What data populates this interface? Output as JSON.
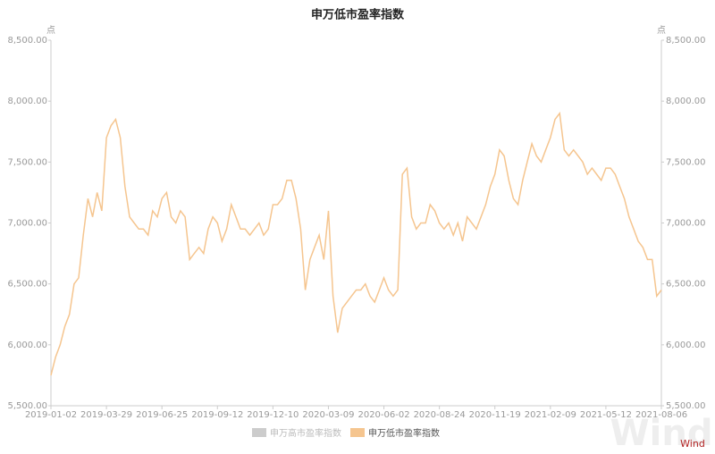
{
  "chart_data": {
    "type": "line",
    "title": "申万低市盈率指数",
    "unit_left": "点",
    "unit_right": "点",
    "watermark": "Wind",
    "categories": [
      "2019-01-02",
      null,
      null,
      null,
      null,
      null,
      null,
      null,
      null,
      null,
      null,
      null,
      "2019-03-29",
      null,
      null,
      null,
      null,
      null,
      null,
      null,
      null,
      null,
      null,
      null,
      "2019-06-25",
      null,
      null,
      null,
      null,
      null,
      null,
      null,
      null,
      null,
      null,
      null,
      "2019-09-12",
      null,
      null,
      null,
      null,
      null,
      null,
      null,
      null,
      null,
      null,
      null,
      "2019-12-10",
      null,
      null,
      null,
      null,
      null,
      null,
      null,
      null,
      null,
      null,
      null,
      "2020-03-09",
      null,
      null,
      null,
      null,
      null,
      null,
      null,
      null,
      null,
      null,
      null,
      "2020-06-02",
      null,
      null,
      null,
      null,
      null,
      null,
      null,
      null,
      null,
      null,
      null,
      "2020-08-24",
      null,
      null,
      null,
      null,
      null,
      null,
      null,
      null,
      null,
      null,
      null,
      "2020-11-19",
      null,
      null,
      null,
      null,
      null,
      null,
      null,
      null,
      null,
      null,
      null,
      "2021-02-09",
      null,
      null,
      null,
      null,
      null,
      null,
      null,
      null,
      null,
      null,
      null,
      "2021-05-12",
      null,
      null,
      null,
      null,
      null,
      null,
      null,
      null,
      null,
      null,
      null,
      "2021-08-06"
    ],
    "series": [
      {
        "name": "申万高市盈率指数",
        "color": "#cccccc",
        "visible": false,
        "values": [
          null,
          null,
          null,
          null,
          null,
          null,
          null,
          null,
          null,
          null,
          null,
          null,
          null,
          null,
          null,
          null,
          null,
          null,
          null,
          null,
          null,
          null,
          null,
          null,
          null,
          null,
          null,
          null,
          null,
          null,
          null,
          null,
          null,
          null,
          null,
          null,
          null,
          null,
          null,
          null,
          null,
          null,
          null,
          null,
          null,
          null,
          null,
          null,
          null,
          null,
          null,
          null,
          null,
          null,
          null,
          null,
          null,
          null,
          null,
          null,
          null,
          null,
          null,
          null,
          null,
          null,
          null,
          null,
          null,
          null,
          null,
          null,
          null,
          null,
          null,
          null,
          null,
          null,
          null,
          null,
          null,
          null,
          null,
          null,
          null,
          null,
          null,
          null,
          null,
          null,
          null,
          null,
          null,
          null,
          null,
          null,
          null,
          null,
          null,
          null,
          null,
          null,
          null,
          null,
          null,
          null,
          null,
          null,
          null,
          null,
          null,
          null,
          null,
          null,
          null,
          null,
          null,
          null,
          null,
          null,
          null,
          null,
          null,
          null,
          null,
          null,
          null,
          null,
          null,
          null,
          null,
          null,
          null
        ]
      },
      {
        "name": "申万低市盈率指数",
        "color": "#f5c58f",
        "visible": true,
        "values": [
          5750,
          5900,
          6000,
          6150,
          6250,
          6500,
          6550,
          6900,
          7200,
          7050,
          7250,
          7100,
          7700,
          7800,
          7850,
          7700,
          7300,
          7050,
          7000,
          6950,
          6950,
          6900,
          7100,
          7050,
          7200,
          7250,
          7050,
          7000,
          7100,
          7050,
          6700,
          6750,
          6800,
          6750,
          6950,
          7050,
          7000,
          6850,
          6950,
          7150,
          7050,
          6950,
          6950,
          6900,
          6950,
          7000,
          6900,
          6950,
          7150,
          7150,
          7200,
          7350,
          7350,
          7200,
          6950,
          6450,
          6700,
          6800,
          6900,
          6700,
          7100,
          6400,
          6100,
          6300,
          6350,
          6400,
          6450,
          6450,
          6500,
          6400,
          6350,
          6450,
          6550,
          6450,
          6400,
          6450,
          7400,
          7450,
          7050,
          6950,
          7000,
          7000,
          7150,
          7100,
          7000,
          6950,
          7000,
          6900,
          7000,
          6850,
          7050,
          7000,
          6950,
          7050,
          7150,
          7300,
          7400,
          7600,
          7550,
          7350,
          7200,
          7150,
          7350,
          7500,
          7650,
          7550,
          7500,
          7600,
          7700,
          7850,
          7900,
          7600,
          7550,
          7600,
          7550,
          7500,
          7400,
          7450,
          7400,
          7350,
          7450,
          7450,
          7400,
          7300,
          7200,
          7050,
          6950,
          6850,
          6800,
          6700,
          6700,
          6400,
          6450
        ]
      }
    ],
    "ylim": [
      5500,
      8500
    ],
    "y2lim": [
      5500,
      8500
    ],
    "yticks": [
      {
        "value": 5500,
        "label": "5,500.00"
      },
      {
        "value": 6000,
        "label": "6,000.00"
      },
      {
        "value": 6500,
        "label": "6,500.00"
      },
      {
        "value": 7000,
        "label": "7,000.00"
      },
      {
        "value": 7500,
        "label": "7,500.00"
      },
      {
        "value": 8000,
        "label": "8,000.00"
      },
      {
        "value": 8500,
        "label": "8,500.00"
      }
    ],
    "y2ticks": [
      {
        "value": 5500,
        "label": "5,500.00"
      },
      {
        "value": 6000,
        "label": "6,000.00"
      },
      {
        "value": 6500,
        "label": "6,500.00"
      },
      {
        "value": 7000,
        "label": "7,000.00"
      },
      {
        "value": 7500,
        "label": "7,500.00"
      },
      {
        "value": 8000,
        "label": "8,000.00"
      },
      {
        "value": 8500,
        "label": "8,500.00"
      }
    ],
    "grid": false,
    "legend": "bottom"
  }
}
